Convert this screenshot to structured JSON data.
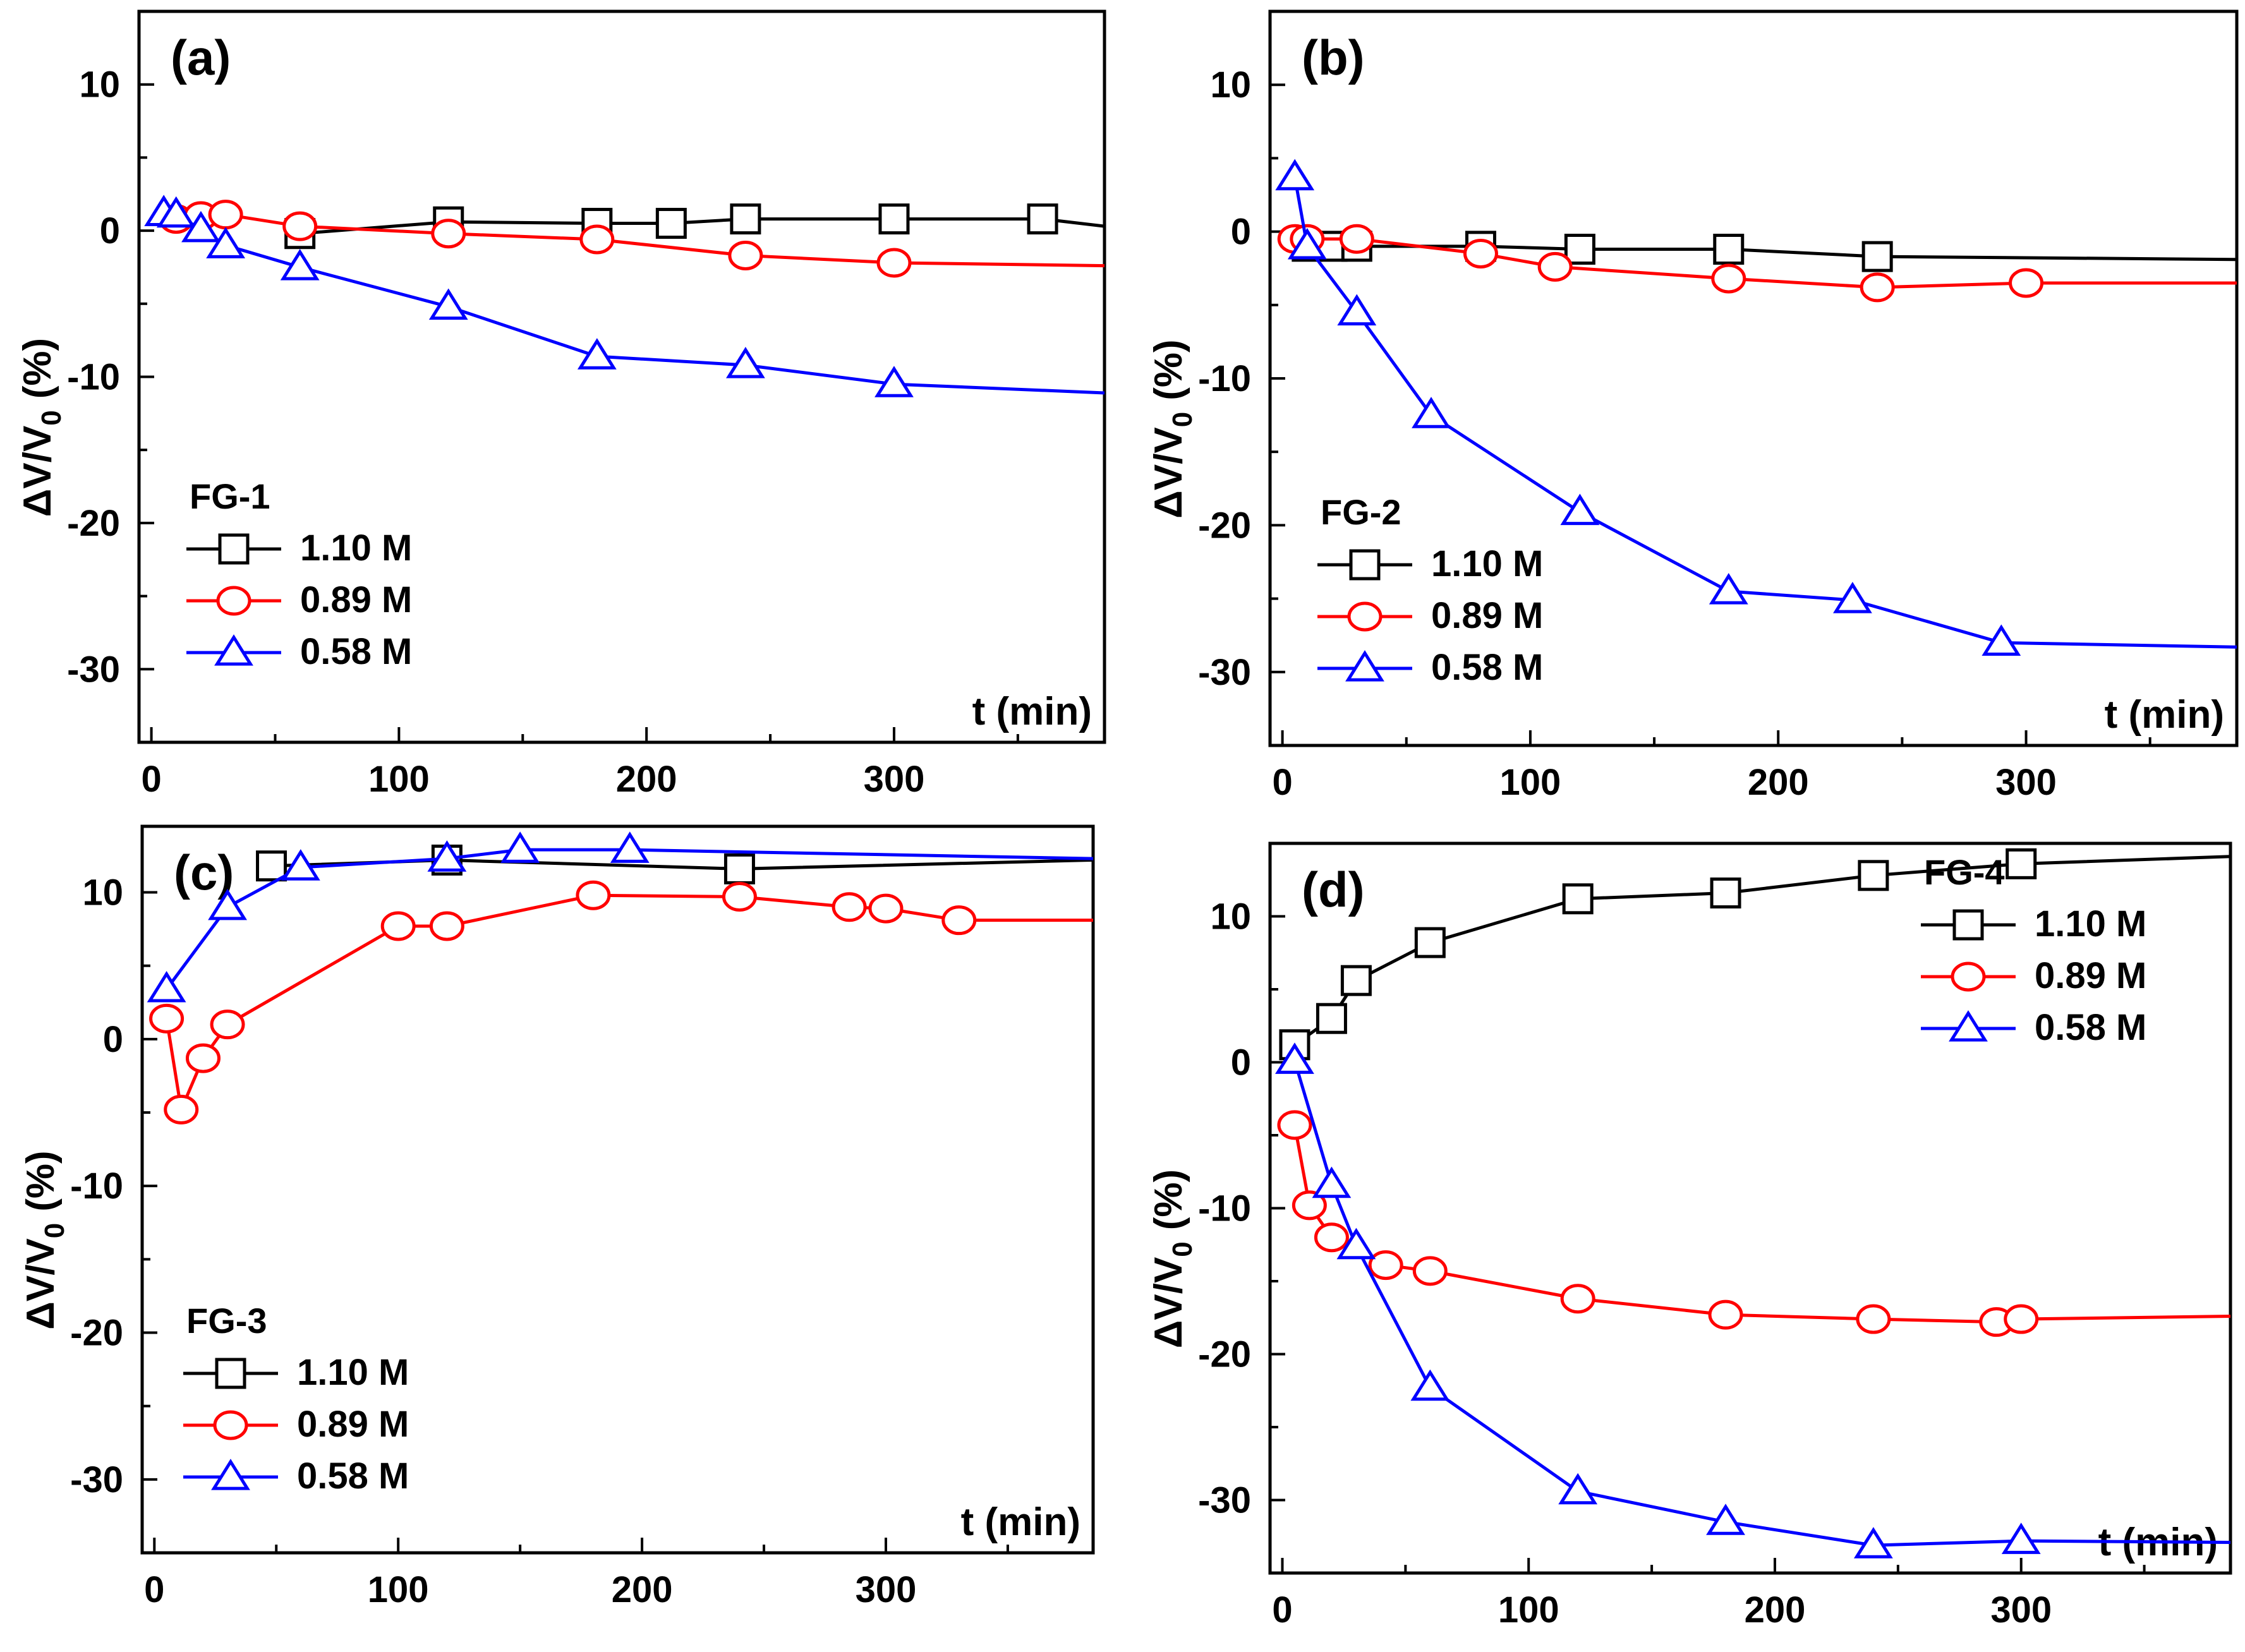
{
  "chart_data": [
    {
      "type": "line",
      "panel_label": "(a)",
      "xlabel": "t (min)",
      "ylabel": "ΔV/V",
      "ylabel_sub": "0",
      "ylabel_suffix": "(%)",
      "xlim": [
        -5,
        385
      ],
      "ylim": [
        -35,
        15
      ],
      "xticks": [
        0,
        100,
        200,
        300
      ],
      "yticks": [
        10,
        0,
        -10,
        -20,
        -30
      ],
      "legend": {
        "title": "FG-1",
        "position": "lower-left"
      },
      "series": [
        {
          "name": "1.10 M",
          "color": "#000000",
          "marker": "square",
          "x": [
            60,
            120,
            180,
            210,
            240,
            300,
            360
          ],
          "y": [
            -0.2,
            0.6,
            0.5,
            0.5,
            0.8,
            0.8,
            0.8
          ],
          "line_end": [
            385,
            0.3
          ]
        },
        {
          "name": "0.89 M",
          "color": "#ff0000",
          "marker": "circle",
          "x": [
            10,
            20,
            30,
            60,
            120,
            180,
            240,
            300
          ],
          "y": [
            0.8,
            1.0,
            1.1,
            0.3,
            -0.2,
            -0.6,
            -1.7,
            -2.2
          ],
          "line_end": [
            385,
            -2.4
          ]
        },
        {
          "name": "0.58 M",
          "color": "#0000ff",
          "marker": "triangle",
          "x": [
            5,
            10,
            20,
            30,
            60,
            120,
            180,
            240,
            300
          ],
          "y": [
            1.2,
            1.1,
            0.1,
            -1.0,
            -2.5,
            -5.2,
            -8.6,
            -9.2,
            -10.5
          ],
          "line_end": [
            385,
            -11.1
          ]
        }
      ]
    },
    {
      "type": "line",
      "panel_label": "(b)",
      "xlabel": "t (min)",
      "ylabel": "ΔV/V",
      "ylabel_sub": "0",
      "ylabel_suffix": "(%)",
      "xlim": [
        -5,
        385
      ],
      "ylim": [
        -35,
        15
      ],
      "xticks": [
        0,
        100,
        200,
        300
      ],
      "yticks": [
        10,
        0,
        -10,
        -20,
        -30
      ],
      "legend": {
        "title": "FG-2",
        "position": "lower-left"
      },
      "series": [
        {
          "name": "1.10 M",
          "color": "#000000",
          "marker": "square",
          "x": [
            10,
            20,
            30,
            80,
            120,
            180,
            240
          ],
          "y": [
            -1.0,
            -1.0,
            -1.0,
            -1.0,
            -1.2,
            -1.2,
            -1.7
          ],
          "line_end": [
            385,
            -1.9
          ]
        },
        {
          "name": "0.89 M",
          "color": "#ff0000",
          "marker": "circle",
          "x": [
            5,
            10,
            30,
            80,
            110,
            180,
            240,
            300
          ],
          "y": [
            -0.5,
            -0.5,
            -0.5,
            -1.5,
            -2.4,
            -3.2,
            -3.8,
            -3.5
          ],
          "line_end": [
            385,
            -3.5
          ]
        },
        {
          "name": "0.58 M",
          "color": "#0000ff",
          "marker": "triangle",
          "x": [
            5,
            10,
            30,
            60,
            120,
            180,
            230,
            290
          ],
          "y": [
            3.7,
            -1.0,
            -5.5,
            -12.5,
            -19.1,
            -24.5,
            -25.1,
            -28.0
          ],
          "line_end": [
            385,
            -28.3
          ]
        }
      ]
    },
    {
      "type": "line",
      "panel_label": "(c)",
      "xlabel": "t (min)",
      "ylabel": "ΔV/V",
      "ylabel_sub": "0",
      "ylabel_suffix": "(%)",
      "xlim": [
        -5,
        385
      ],
      "ylim": [
        -35,
        14.5
      ],
      "xticks": [
        0,
        100,
        200,
        300
      ],
      "yticks": [
        10,
        0,
        -10,
        -20,
        -30
      ],
      "legend": {
        "title": "FG-3",
        "position": "lower-left"
      },
      "series": [
        {
          "name": "1.10 M",
          "color": "#000000",
          "marker": "square",
          "x": [
            48,
            120,
            240
          ],
          "y": [
            11.8,
            12.2,
            11.6
          ],
          "line_end": [
            385,
            12.2
          ]
        },
        {
          "name": "0.89 M",
          "color": "#ff0000",
          "marker": "circle",
          "x": [
            5,
            11,
            20,
            30,
            100,
            120,
            180,
            240,
            285,
            300,
            330
          ],
          "y": [
            1.4,
            -4.8,
            -1.3,
            1.0,
            7.7,
            7.7,
            9.8,
            9.7,
            9.0,
            8.9,
            8.1
          ],
          "line_end": [
            385,
            8.1
          ]
        },
        {
          "name": "0.58 M",
          "color": "#0000ff",
          "marker": "triangle",
          "x": [
            5,
            30,
            60,
            120,
            150,
            195
          ],
          "y": [
            3.4,
            9.0,
            11.7,
            12.3,
            12.9,
            12.9
          ],
          "line_end": [
            385,
            12.3
          ]
        }
      ]
    },
    {
      "type": "line",
      "panel_label": "(d)",
      "xlabel": "t (min)",
      "ylabel": "ΔV/V",
      "ylabel_sub": "0",
      "ylabel_suffix": "(%)",
      "xlim": [
        -5,
        385
      ],
      "ylim": [
        -35,
        15
      ],
      "xticks": [
        0,
        100,
        200,
        300
      ],
      "yticks": [
        10,
        0,
        -10,
        -20,
        -30
      ],
      "legend": {
        "title": "FG-4",
        "position": "upper-right"
      },
      "series": [
        {
          "name": "1.10 M",
          "color": "#000000",
          "marker": "square",
          "x": [
            5,
            20,
            30,
            60,
            120,
            180,
            240,
            300
          ],
          "y": [
            1.2,
            3.0,
            5.6,
            8.2,
            11.2,
            11.6,
            12.8,
            13.6
          ],
          "line_end": [
            385,
            14.1
          ]
        },
        {
          "name": "0.89 M",
          "color": "#ff0000",
          "marker": "circle",
          "x": [
            5,
            11,
            20,
            42,
            60,
            120,
            180,
            240,
            290,
            300
          ],
          "y": [
            -4.3,
            -9.8,
            -12.0,
            -13.9,
            -14.3,
            -16.2,
            -17.3,
            -17.6,
            -17.8,
            -17.6
          ],
          "line_end": [
            385,
            -17.4
          ]
        },
        {
          "name": "0.58 M",
          "color": "#0000ff",
          "marker": "triangle",
          "x": [
            5,
            20,
            30,
            60,
            120,
            180,
            240,
            300
          ],
          "y": [
            0.1,
            -8.4,
            -12.6,
            -22.3,
            -29.4,
            -31.5,
            -33.1,
            -32.8
          ],
          "line_end": [
            385,
            -32.9
          ]
        }
      ]
    }
  ]
}
